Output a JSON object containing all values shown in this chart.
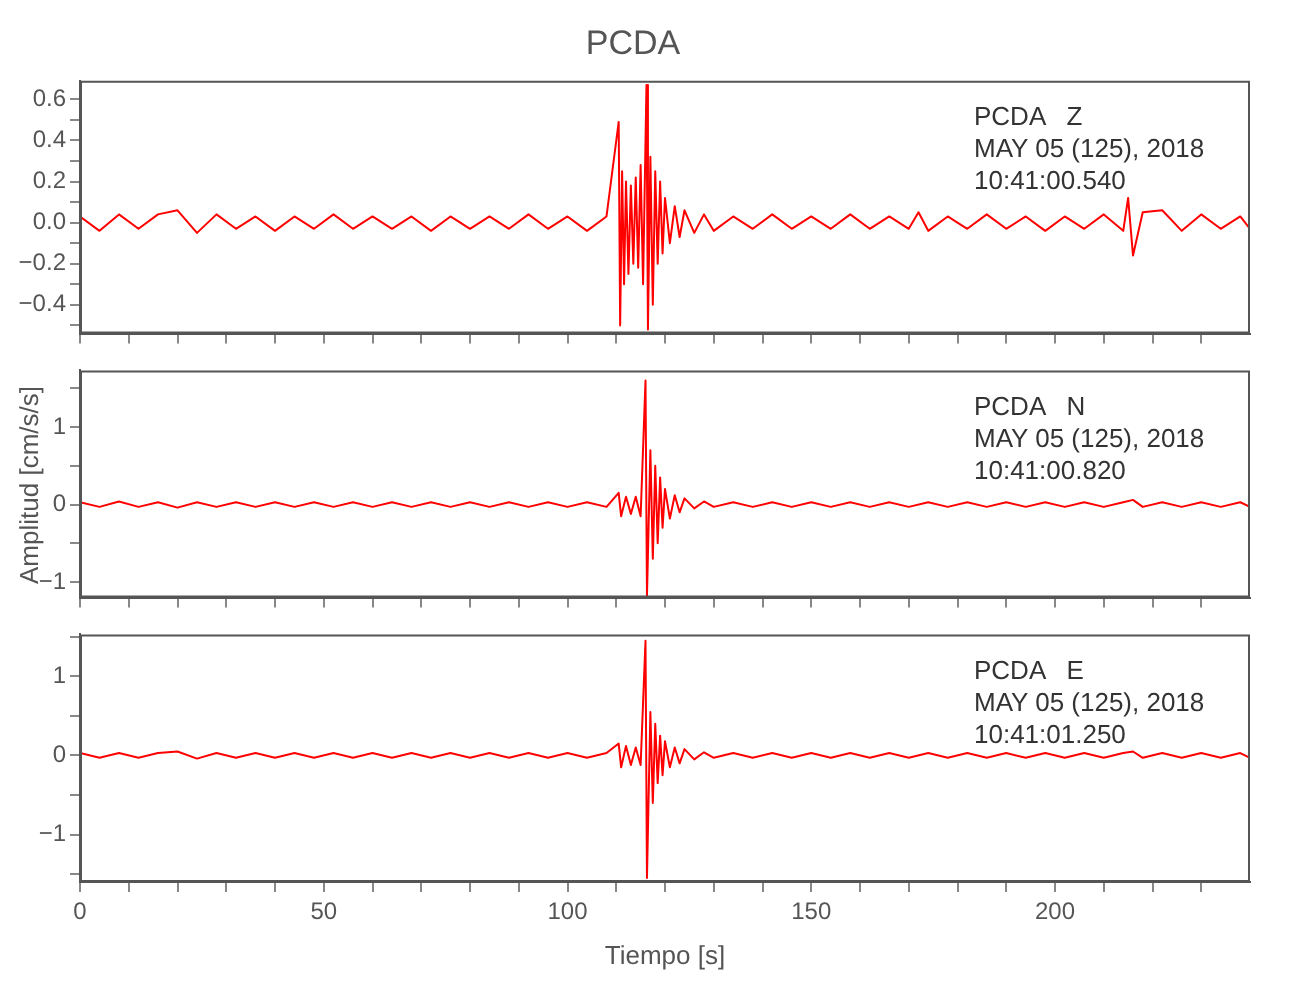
{
  "chart_data": [
    {
      "type": "line",
      "title": "PCDA",
      "annotations": [
        "PCDA   Z",
        "MAY 05 (125), 2018",
        "10:41:00.540"
      ],
      "xlim": [
        0,
        240
      ],
      "ylim": [
        -0.54,
        0.69
      ],
      "tick_labels": "y",
      "marker": "none",
      "line_style": "solid",
      "xticks": [
        0,
        {
          "value": 10,
          "label": null
        },
        {
          "value": 20,
          "label": null
        },
        {
          "value": 30,
          "label": null
        },
        {
          "value": 40,
          "label": null
        },
        50,
        {
          "value": 60,
          "label": null
        },
        {
          "value": 70,
          "label": null
        },
        {
          "value": 80,
          "label": null
        },
        {
          "value": 90,
          "label": null
        },
        100,
        {
          "value": 110,
          "label": null
        },
        {
          "value": 120,
          "label": null
        },
        {
          "value": 130,
          "label": null
        },
        {
          "value": 140,
          "label": null
        },
        150,
        {
          "value": 160,
          "label": null
        },
        {
          "value": 170,
          "label": null
        },
        {
          "value": 180,
          "label": null
        },
        {
          "value": 190,
          "label": null
        },
        200,
        {
          "value": 210,
          "label": null
        },
        {
          "value": 220,
          "label": null
        },
        {
          "value": 230,
          "label": null
        }
      ],
      "yticks": [
        {
          "value": -0.5,
          "label": null
        },
        -0.4,
        {
          "value": -0.3,
          "label": null
        },
        -0.2,
        {
          "value": -0.1,
          "label": null
        },
        {
          "value": 0,
          "label": "0.0"
        },
        {
          "value": 0.1,
          "label": null
        },
        0.2,
        {
          "value": 0.3,
          "label": null
        },
        0.4,
        {
          "value": 0.5,
          "label": null
        },
        0.6
      ],
      "series": [
        {
          "color": "#ff0000",
          "x": [
            0,
            4,
            8,
            12,
            16,
            20,
            24,
            28,
            32,
            36,
            40,
            44,
            48,
            52,
            56,
            60,
            64,
            68,
            72,
            76,
            80,
            84,
            88,
            92,
            96,
            100,
            104,
            108,
            110.5,
            110.8,
            111.2,
            111.6,
            112,
            112.5,
            113,
            113.5,
            114,
            114.5,
            115,
            115.5,
            116.2,
            116.5,
            117,
            117.5,
            118,
            118.5,
            119,
            119.5,
            120,
            121,
            122,
            123,
            124,
            126,
            128,
            130,
            134,
            138,
            142,
            146,
            150,
            154,
            158,
            162,
            166,
            170,
            172,
            174,
            178,
            182,
            186,
            190,
            194,
            198,
            202,
            206,
            210,
            214,
            215,
            216,
            218,
            222,
            226,
            230,
            234,
            238,
            240
          ],
          "values": [
            0.03,
            -0.04,
            0.04,
            -0.03,
            0.04,
            0.06,
            -0.05,
            0.04,
            -0.03,
            0.03,
            -0.04,
            0.03,
            -0.03,
            0.04,
            -0.03,
            0.03,
            -0.03,
            0.03,
            -0.04,
            0.03,
            -0.03,
            0.03,
            -0.03,
            0.04,
            -0.03,
            0.03,
            -0.04,
            0.03,
            0.49,
            -0.5,
            0.25,
            -0.3,
            0.2,
            -0.25,
            0.18,
            -0.2,
            0.22,
            -0.22,
            0.28,
            -0.3,
            0.67,
            -0.52,
            0.32,
            -0.4,
            0.25,
            -0.2,
            0.2,
            -0.15,
            0.12,
            -0.1,
            0.08,
            -0.07,
            0.06,
            -0.05,
            0.04,
            -0.04,
            0.03,
            -0.03,
            0.04,
            -0.03,
            0.03,
            -0.03,
            0.04,
            -0.03,
            0.03,
            -0.03,
            0.05,
            -0.04,
            0.03,
            -0.03,
            0.04,
            -0.03,
            0.03,
            -0.04,
            0.03,
            -0.03,
            0.04,
            -0.04,
            0.12,
            -0.16,
            0.05,
            0.06,
            -0.04,
            0.04,
            -0.03,
            0.03,
            -0.03
          ]
        }
      ]
    },
    {
      "type": "line",
      "ylabel": "Amplitud [cm/s/s]",
      "annotations": [
        "PCDA   N",
        "MAY 05 (125), 2018",
        "10:41:00.820"
      ],
      "xlim": [
        0,
        240
      ],
      "ylim": [
        -1.2,
        1.73
      ],
      "tick_labels": "y",
      "marker": "none",
      "line_style": "solid",
      "xticks": [
        0,
        {
          "value": 10,
          "label": null
        },
        {
          "value": 20,
          "label": null
        },
        {
          "value": 30,
          "label": null
        },
        {
          "value": 40,
          "label": null
        },
        50,
        {
          "value": 60,
          "label": null
        },
        {
          "value": 70,
          "label": null
        },
        {
          "value": 80,
          "label": null
        },
        {
          "value": 90,
          "label": null
        },
        100,
        {
          "value": 110,
          "label": null
        },
        {
          "value": 120,
          "label": null
        },
        {
          "value": 130,
          "label": null
        },
        {
          "value": 140,
          "label": null
        },
        150,
        {
          "value": 160,
          "label": null
        },
        {
          "value": 170,
          "label": null
        },
        {
          "value": 180,
          "label": null
        },
        {
          "value": 190,
          "label": null
        },
        200,
        {
          "value": 210,
          "label": null
        },
        {
          "value": 220,
          "label": null
        },
        {
          "value": 230,
          "label": null
        }
      ],
      "yticks": [
        -1,
        {
          "value": -0.5,
          "label": null
        },
        0,
        {
          "value": 0.5,
          "label": null
        },
        1,
        {
          "value": 1.5,
          "label": null
        }
      ],
      "series": [
        {
          "color": "#ff0000",
          "x": [
            0,
            4,
            8,
            12,
            16,
            20,
            24,
            28,
            32,
            36,
            40,
            44,
            48,
            52,
            56,
            60,
            64,
            68,
            72,
            76,
            80,
            84,
            88,
            92,
            96,
            100,
            104,
            108,
            110.5,
            111,
            112,
            113,
            114,
            115,
            116,
            116.3,
            117,
            117.5,
            118,
            118.5,
            119,
            119.5,
            120,
            121,
            122,
            123,
            124,
            126,
            128,
            130,
            134,
            138,
            142,
            146,
            150,
            154,
            158,
            162,
            166,
            170,
            174,
            178,
            182,
            186,
            190,
            194,
            198,
            202,
            206,
            210,
            214,
            216,
            218,
            222,
            226,
            230,
            234,
            238,
            240
          ],
          "values": [
            0.03,
            -0.03,
            0.04,
            -0.03,
            0.03,
            -0.04,
            0.03,
            -0.03,
            0.03,
            -0.03,
            0.03,
            -0.03,
            0.03,
            -0.03,
            0.03,
            -0.03,
            0.03,
            -0.03,
            0.03,
            -0.03,
            0.03,
            -0.03,
            0.03,
            -0.03,
            0.03,
            -0.03,
            0.03,
            -0.03,
            0.15,
            -0.15,
            0.1,
            -0.12,
            0.1,
            -0.15,
            1.6,
            -1.18,
            0.7,
            -0.7,
            0.5,
            -0.5,
            0.35,
            -0.3,
            0.2,
            -0.18,
            0.12,
            -0.1,
            0.08,
            -0.05,
            0.04,
            -0.03,
            0.03,
            -0.03,
            0.03,
            -0.03,
            0.03,
            -0.03,
            0.03,
            -0.03,
            0.03,
            -0.03,
            0.03,
            -0.03,
            0.03,
            -0.03,
            0.03,
            -0.03,
            0.03,
            -0.03,
            0.03,
            -0.03,
            0.03,
            0.06,
            -0.03,
            0.03,
            -0.03,
            0.03,
            -0.03,
            0.03,
            -0.03
          ]
        }
      ]
    },
    {
      "type": "line",
      "xlabel": "Tiempo [s]",
      "annotations": [
        "PCDA   E",
        "MAY 05 (125), 2018",
        "10:41:01.250"
      ],
      "xlim": [
        0,
        240
      ],
      "ylim": [
        -1.6,
        1.53
      ],
      "marker": "none",
      "line_style": "solid",
      "xticks": [
        0,
        {
          "value": 10,
          "label": null
        },
        {
          "value": 20,
          "label": null
        },
        {
          "value": 30,
          "label": null
        },
        {
          "value": 40,
          "label": null
        },
        50,
        {
          "value": 60,
          "label": null
        },
        {
          "value": 70,
          "label": null
        },
        {
          "value": 80,
          "label": null
        },
        {
          "value": 90,
          "label": null
        },
        100,
        {
          "value": 110,
          "label": null
        },
        {
          "value": 120,
          "label": null
        },
        {
          "value": 130,
          "label": null
        },
        {
          "value": 140,
          "label": null
        },
        150,
        {
          "value": 160,
          "label": null
        },
        {
          "value": 170,
          "label": null
        },
        {
          "value": 180,
          "label": null
        },
        {
          "value": 190,
          "label": null
        },
        200,
        {
          "value": 210,
          "label": null
        },
        {
          "value": 220,
          "label": null
        },
        {
          "value": 230,
          "label": null
        }
      ],
      "yticks": [
        {
          "value": -1.5,
          "label": null
        },
        -1,
        {
          "value": -0.5,
          "label": null
        },
        0,
        {
          "value": 0.5,
          "label": null
        },
        1,
        {
          "value": 1.5,
          "label": null
        }
      ],
      "series": [
        {
          "color": "#ff0000",
          "x": [
            0,
            4,
            8,
            12,
            16,
            20,
            24,
            28,
            32,
            36,
            40,
            44,
            48,
            52,
            56,
            60,
            64,
            68,
            72,
            76,
            80,
            84,
            88,
            92,
            96,
            100,
            104,
            108,
            110.5,
            111,
            112,
            113,
            114,
            115,
            116,
            116.3,
            117,
            117.5,
            118,
            118.5,
            119,
            119.5,
            120,
            121,
            122,
            123,
            124,
            126,
            128,
            130,
            134,
            138,
            142,
            146,
            150,
            154,
            158,
            162,
            166,
            170,
            174,
            178,
            182,
            186,
            190,
            194,
            198,
            202,
            206,
            210,
            214,
            216,
            218,
            222,
            226,
            230,
            234,
            238,
            240
          ],
          "values": [
            0.03,
            -0.03,
            0.03,
            -0.03,
            0.03,
            0.05,
            -0.04,
            0.03,
            -0.03,
            0.03,
            -0.03,
            0.03,
            -0.03,
            0.03,
            -0.03,
            0.03,
            -0.03,
            0.03,
            -0.03,
            0.03,
            -0.03,
            0.03,
            -0.03,
            0.03,
            -0.03,
            0.03,
            -0.03,
            0.03,
            0.15,
            -0.15,
            0.12,
            -0.12,
            0.1,
            -0.12,
            1.45,
            -1.55,
            0.55,
            -0.6,
            0.4,
            -0.35,
            0.25,
            -0.25,
            0.18,
            -0.15,
            0.1,
            -0.1,
            0.08,
            -0.05,
            0.04,
            -0.03,
            0.03,
            -0.03,
            0.03,
            -0.03,
            0.03,
            -0.03,
            0.03,
            -0.03,
            0.03,
            -0.03,
            0.03,
            -0.03,
            0.03,
            -0.03,
            0.03,
            -0.03,
            0.03,
            -0.03,
            0.03,
            -0.03,
            0.03,
            0.05,
            -0.03,
            0.03,
            -0.03,
            0.03,
            -0.03,
            0.03,
            -0.03
          ]
        }
      ]
    }
  ]
}
